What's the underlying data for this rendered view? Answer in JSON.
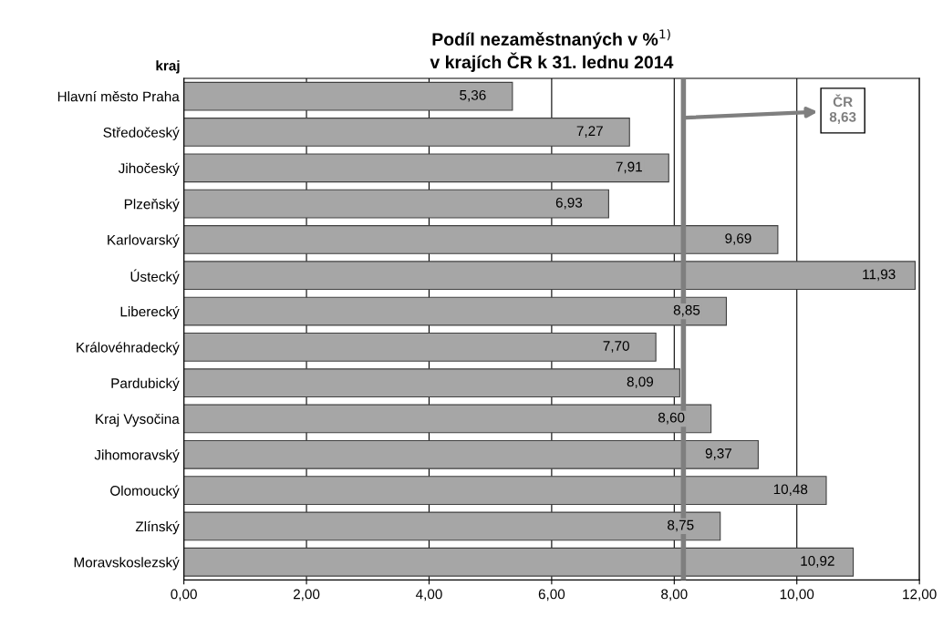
{
  "chart_data": {
    "type": "bar",
    "orientation": "horizontal",
    "title": "Podíl nezaměstnaných v %$^{1)}$\nv krajích ČR k 31. lednu 2014",
    "ylabel": "kraj",
    "categories": [
      "Hlavní město Praha",
      "Středočeský",
      "Jihočeský",
      "Plzeňský",
      "Karlovarský",
      "Ústecký",
      "Liberecký",
      "Královéhradecký",
      "Pardubický",
      "Kraj Vysočina",
      "Jihomoravský",
      "Olomoucký",
      "Zlínský",
      "Moravskoslezský"
    ],
    "values": [
      5.36,
      7.27,
      7.91,
      6.93,
      9.69,
      11.93,
      8.85,
      7.7,
      8.09,
      8.6,
      9.37,
      10.48,
      8.75,
      10.92
    ],
    "value_labels": [
      "5,36",
      "7,27",
      "7,91",
      "6,93",
      "9,69",
      "11,93",
      "8,85",
      "7,70",
      "8,09",
      "8,60",
      "9,37",
      "10,48",
      "8,75",
      "10,92"
    ],
    "color": "#a6a6a6",
    "xlim": [
      0,
      12
    ],
    "xticks": [
      {
        "value": 0,
        "label": "0,00"
      },
      {
        "value": 2,
        "label": "2,00"
      },
      {
        "value": 4,
        "label": "4,00"
      },
      {
        "value": 6,
        "label": "6,00"
      },
      {
        "value": 8,
        "label": "8,00"
      },
      {
        "value": 10,
        "label": "10,00"
      },
      {
        "value": 12,
        "label": "12,00"
      }
    ],
    "grid": "x",
    "ref_lines": [
      {
        "axis": "x",
        "value": 8.15,
        "label": "ČR\n8,63",
        "color": "#7f7f7f"
      }
    ]
  }
}
